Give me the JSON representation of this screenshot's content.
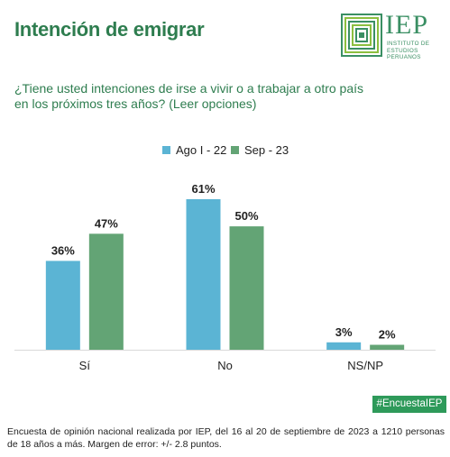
{
  "header": {
    "title": "Intención de emigrar"
  },
  "logo": {
    "name": "IEP",
    "subtitle_lines": [
      "INSTITUTO DE",
      "ESTUDIOS",
      "PERUANOS"
    ]
  },
  "question": "¿Tiene usted intenciones de irse a vivir o a trabajar a otro país en los próximos tres años? (Leer opciones)",
  "chart_data": {
    "type": "bar",
    "categories": [
      "Sí",
      "No",
      "NS/NP"
    ],
    "series": [
      {
        "name": "Ago I - 22",
        "color": "#5bb4d4",
        "values": [
          36,
          61,
          3
        ]
      },
      {
        "name": "Sep - 23",
        "color": "#63a475",
        "values": [
          47,
          50,
          2
        ]
      }
    ],
    "value_suffix": "%",
    "ylim": [
      0,
      61
    ],
    "legend_position": "top-center",
    "grid": false,
    "axis_color": "#d9d9d9"
  },
  "hashtag": "#EncuestaIEP",
  "footnote": "Encuesta de opinión nacional realizada por IEP, del 16 al 20 de septiembre de 2023 a 1210 personas de 18 años a más. Margen de error: +/- 2.8 puntos."
}
